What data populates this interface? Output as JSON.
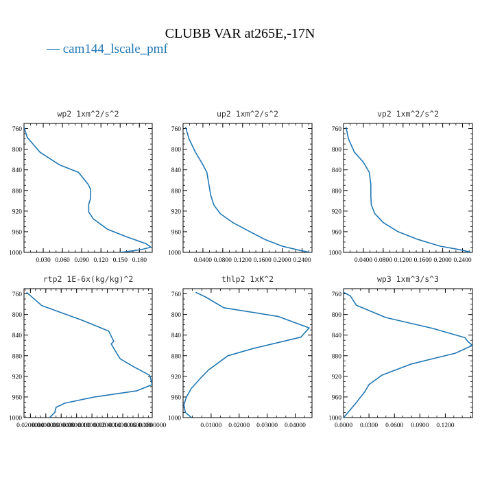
{
  "figure": {
    "title": "CLUBB VAR at265E,-17N",
    "legend": "— cam144_lscale_pmf",
    "line_color": "#1f77b4"
  },
  "chart_data": [
    {
      "type": "line",
      "title": "wp2  1xm^2/s^2",
      "ylim": [
        1000,
        750
      ],
      "y_ticks": [
        760,
        800,
        840,
        880,
        920,
        960,
        1000
      ],
      "xlim": [
        0,
        0.2
      ],
      "x_ticks": [
        0.03,
        0.06,
        0.09,
        0.12,
        0.15,
        0.18
      ],
      "x_tick_labels": [
        "0.030",
        "0.060",
        "0.090",
        "0.120",
        "0.150",
        "0.180"
      ],
      "series": [
        {
          "x": [
            0.0,
            0.005,
            0.025,
            0.055,
            0.085,
            0.1,
            0.104,
            0.104,
            0.101,
            0.101,
            0.108,
            0.13,
            0.16,
            0.19,
            0.198,
            0.185,
            0.17,
            0.15
          ],
          "y": [
            757,
            777,
            806,
            830,
            845,
            868,
            878,
            895,
            907,
            922,
            935,
            955,
            970,
            983,
            990,
            994,
            997,
            1000
          ]
        }
      ]
    },
    {
      "type": "line",
      "title": "up2  1xm^2/s^2",
      "ylim": [
        1000,
        750
      ],
      "y_ticks": [
        760,
        800,
        840,
        880,
        920,
        960,
        1000
      ],
      "xlim": [
        0,
        0.26
      ],
      "x_ticks": [
        0.04,
        0.08,
        0.12,
        0.16,
        0.2,
        0.24
      ],
      "x_tick_labels": [
        "0.0400",
        "0.0800",
        "0.1200",
        "0.1600",
        "0.2000",
        "0.2400"
      ],
      "series": [
        {
          "x": [
            0.005,
            0.012,
            0.025,
            0.04,
            0.048,
            0.052,
            0.056,
            0.062,
            0.075,
            0.1,
            0.135,
            0.165,
            0.2,
            0.23,
            0.255
          ],
          "y": [
            757,
            780,
            806,
            830,
            845,
            868,
            890,
            908,
            925,
            942,
            960,
            975,
            988,
            995,
            1000
          ]
        }
      ]
    },
    {
      "type": "line",
      "title": "vp2  1xm^2/s^2",
      "ylim": [
        1000,
        750
      ],
      "y_ticks": [
        760,
        800,
        840,
        880,
        920,
        960,
        1000
      ],
      "xlim": [
        0,
        0.26
      ],
      "x_ticks": [
        0.04,
        0.08,
        0.12,
        0.16,
        0.2,
        0.24
      ],
      "x_tick_labels": [
        "0.0400",
        "0.0800",
        "0.1200",
        "0.1600",
        "0.2000",
        "0.2400"
      ],
      "series": [
        {
          "x": [
            0.005,
            0.01,
            0.022,
            0.04,
            0.052,
            0.055,
            0.055,
            0.056,
            0.063,
            0.08,
            0.11,
            0.15,
            0.195,
            0.235,
            0.258
          ],
          "y": [
            757,
            780,
            806,
            825,
            845,
            868,
            890,
            908,
            925,
            942,
            960,
            975,
            988,
            995,
            1000
          ]
        }
      ]
    },
    {
      "type": "line",
      "title": "rtp2  1E-6x(kg/kg)^2",
      "ylim": [
        1000,
        750
      ],
      "y_ticks": [
        760,
        800,
        840,
        880,
        920,
        960,
        1000
      ],
      "xlim": [
        0.0,
        1.0
      ],
      "x_ticks": [
        0.05,
        0.17,
        0.29,
        0.41,
        0.53,
        0.65,
        0.77,
        0.89,
        1.0
      ],
      "x_tick_labels": [
        "0.0200000",
        "0.0400000",
        "0.0600000",
        "0.0800000",
        "0.1000000",
        "0.1200000",
        "0.1400000",
        "0.1600000",
        "0.1800000"
      ],
      "series": [
        {
          "x": [
            0.02,
            0.14,
            0.44,
            0.66,
            0.7,
            0.68,
            0.71,
            0.75,
            0.86,
            0.98,
            1.0,
            0.88,
            0.55,
            0.32,
            0.25,
            0.24,
            0.2
          ],
          "y": [
            757,
            783,
            810,
            832,
            852,
            857,
            870,
            886,
            902,
            918,
            936,
            948,
            960,
            972,
            980,
            990,
            1000
          ]
        }
      ]
    },
    {
      "type": "line",
      "title": "thlp2  1xK^2",
      "ylim": [
        1000,
        750
      ],
      "y_ticks": [
        760,
        800,
        840,
        880,
        920,
        960,
        1000
      ],
      "xlim": [
        0,
        0.046
      ],
      "x_ticks": [
        0.01,
        0.02,
        0.03,
        0.04
      ],
      "x_tick_labels": [
        "0.01000",
        "0.02000",
        "0.03000",
        "0.04000"
      ],
      "series": [
        {
          "x": [
            0.0045,
            0.008,
            0.0145,
            0.034,
            0.045,
            0.042,
            0.025,
            0.016,
            0.012,
            0.009,
            0.006,
            0.003,
            0.0012,
            0.0003,
            0.0008,
            0.003
          ],
          "y": [
            757,
            766,
            787,
            804,
            826,
            844,
            866,
            880,
            896,
            908,
            925,
            943,
            960,
            975,
            990,
            1000
          ]
        }
      ]
    },
    {
      "type": "line",
      "title": "wp3  1xm^3/s^3",
      "ylim": [
        1000,
        750
      ],
      "y_ticks": [
        760,
        800,
        840,
        880,
        920,
        960,
        1000
      ],
      "xlim": [
        0,
        0.152
      ],
      "x_ticks": [
        0.0,
        0.03,
        0.06,
        0.09,
        0.12
      ],
      "x_tick_labels": [
        "0.0000",
        "0.0300",
        "0.0600",
        "0.0900",
        "0.1200"
      ],
      "series": [
        {
          "x": [
            0.0,
            0.008,
            0.015,
            0.05,
            0.105,
            0.143,
            0.147,
            0.152,
            0.132,
            0.08,
            0.045,
            0.03,
            0.025,
            0.013,
            0.0
          ],
          "y": [
            757,
            764,
            782,
            806,
            827,
            845,
            853,
            860,
            875,
            896,
            918,
            936,
            950,
            975,
            1000
          ]
        }
      ]
    }
  ]
}
